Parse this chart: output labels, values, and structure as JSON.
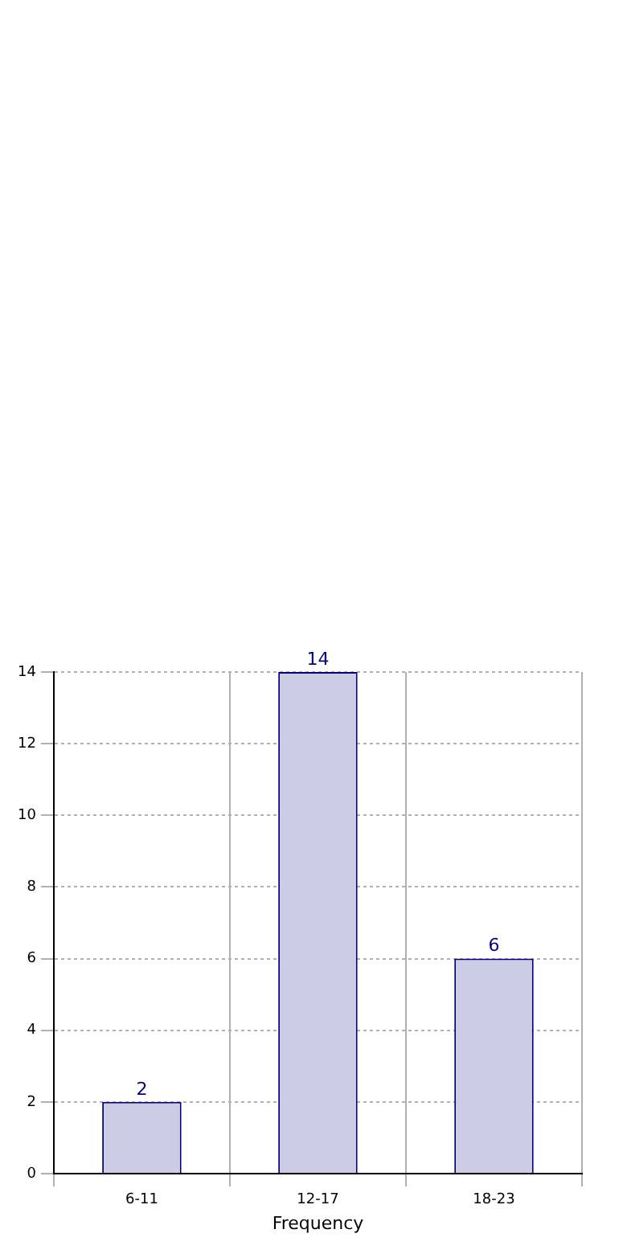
{
  "chart_data": {
    "type": "bar",
    "xlabel": "Frequency",
    "categories": [
      "6-11",
      "12-17",
      "18-23"
    ],
    "values": [
      2,
      14,
      6
    ],
    "color": "#cccce4",
    "ylim": [
      0,
      14
    ],
    "yticks": [
      0,
      2,
      4,
      6,
      8,
      10,
      12,
      14
    ],
    "grid": true,
    "data_labels": true
  }
}
